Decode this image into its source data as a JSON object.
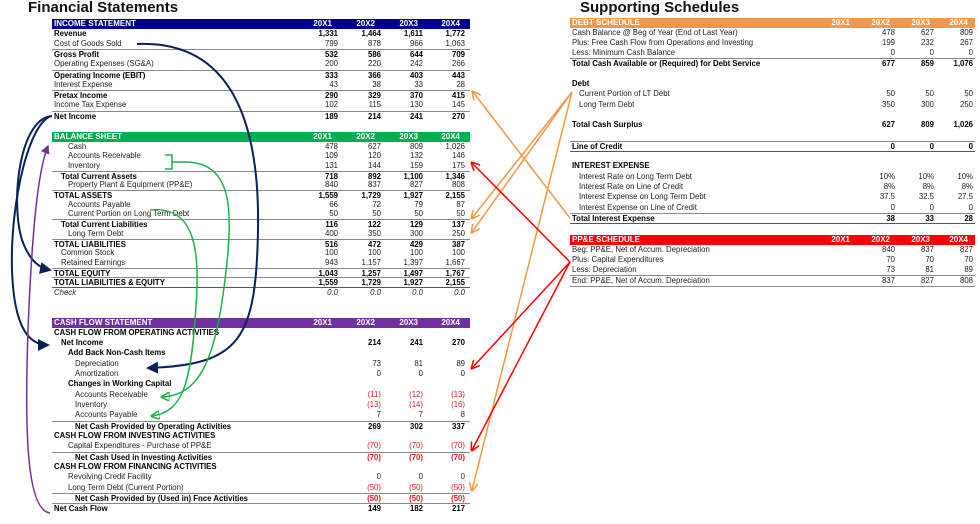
{
  "titles": {
    "left": "Financial Statements",
    "right": "Supporting Schedules"
  },
  "years": [
    "20X1",
    "20X2",
    "20X3",
    "20X4"
  ],
  "colors": {
    "income": "#00008b",
    "balance": "#00b050",
    "cashflow": "#7030a0",
    "debt": "#f79646",
    "ppe": "#ff0000",
    "negative": "#e31b1b"
  },
  "tables": {
    "income": {
      "header": "INCOME STATEMENT",
      "rows": [
        {
          "label": "Revenue",
          "values": [
            "1,331",
            "1,464",
            "1,611",
            "1,772"
          ],
          "bold": true,
          "level": 0
        },
        {
          "label": "Cost of Goods Sold",
          "values": [
            "799",
            "878",
            "966",
            "1,063"
          ],
          "level": 0
        },
        {
          "label": "Gross Profit",
          "values": [
            "532",
            "586",
            "644",
            "709"
          ],
          "bold": true,
          "rule": true,
          "level": 0
        },
        {
          "label": "Operating Expenses (SG&A)",
          "values": [
            "200",
            "220",
            "242",
            "266"
          ],
          "level": 0
        },
        {
          "label": "Operating Income (EBIT)",
          "values": [
            "333",
            "366",
            "403",
            "443"
          ],
          "bold": true,
          "rule": true,
          "level": 0
        },
        {
          "label": "Interest Expense",
          "values": [
            "43",
            "38",
            "33",
            "28"
          ],
          "level": 0
        },
        {
          "label": "Pretax Income",
          "values": [
            "290",
            "329",
            "370",
            "415"
          ],
          "bold": true,
          "rule": true,
          "level": 0
        },
        {
          "label": "Income Tax Expense",
          "values": [
            "102",
            "115",
            "130",
            "145"
          ],
          "level": 0
        },
        {
          "label": "Net Income",
          "values": [
            "189",
            "214",
            "241",
            "270"
          ],
          "bold": true,
          "rule": true,
          "level": 0
        }
      ]
    },
    "balance": {
      "header": "BALANCE SHEET",
      "rows": [
        {
          "label": "Cash",
          "values": [
            "478",
            "627",
            "809",
            "1,026"
          ],
          "level": 2
        },
        {
          "label": "Accounts Receivable",
          "values": [
            "109",
            "120",
            "132",
            "146"
          ],
          "level": 2
        },
        {
          "label": "Inventory",
          "values": [
            "131",
            "144",
            "159",
            "175"
          ],
          "level": 2
        },
        {
          "label": "Total Current Assets",
          "values": [
            "718",
            "892",
            "1,100",
            "1,346"
          ],
          "bold": true,
          "rule": true,
          "level": 1
        },
        {
          "label": "Property Plant & Equipment (PP&E)",
          "values": [
            "840",
            "837",
            "827",
            "808"
          ],
          "level": 2
        },
        {
          "label": "TOTAL ASSETS",
          "values": [
            "1,559",
            "1,729",
            "1,927",
            "2,155"
          ],
          "bold": true,
          "rule": true,
          "level": 0
        },
        {
          "label": "Accounts Payable",
          "values": [
            "66",
            "72",
            "79",
            "87"
          ],
          "level": 2
        },
        {
          "label": "Current Portion on Long Term Debt",
          "values": [
            "50",
            "50",
            "50",
            "50"
          ],
          "level": 2
        },
        {
          "label": "Total Current Liabilities",
          "values": [
            "116",
            "122",
            "129",
            "137"
          ],
          "bold": true,
          "rule": true,
          "level": 1
        },
        {
          "label": "Long Term Debt",
          "values": [
            "400",
            "350",
            "300",
            "250"
          ],
          "level": 2
        },
        {
          "label": "TOTAL LIABILITIES",
          "values": [
            "516",
            "472",
            "429",
            "387"
          ],
          "bold": true,
          "rule": true,
          "level": 0
        },
        {
          "label": "Common Stock",
          "values": [
            "100",
            "100",
            "100",
            "100"
          ],
          "level": 1
        },
        {
          "label": "Retained Earnings",
          "values": [
            "943",
            "1,157",
            "1,397",
            "1,667"
          ],
          "level": 1
        },
        {
          "label": "TOTAL EQUITY",
          "values": [
            "1,043",
            "1,257",
            "1,497",
            "1,767"
          ],
          "bold": true,
          "rule": true,
          "level": 0
        },
        {
          "label": "TOTAL LIABILITIES & EQUITY",
          "values": [
            "1,559",
            "1,729",
            "1,927",
            "2,155"
          ],
          "bold": true,
          "rule": true,
          "level": 0
        },
        {
          "label": "Check",
          "values": [
            "0.0",
            "0.0",
            "0.0",
            "0.0"
          ],
          "italic": true,
          "rule2": true,
          "level": 0
        }
      ]
    },
    "cashflow": {
      "header": "CASH FLOW STATEMENT",
      "rows": [
        {
          "label": "CASH FLOW FROM OPERATING ACTIVITIES",
          "values": [
            "",
            "",
            "",
            ""
          ],
          "bold": true,
          "level": 0
        },
        {
          "label": "Net Income",
          "values": [
            "",
            "214",
            "241",
            "270"
          ],
          "bold": true,
          "level": 1
        },
        {
          "label": "Add Back Non-Cash Items",
          "values": [
            "",
            "",
            "",
            ""
          ],
          "bold": true,
          "level": 2
        },
        {
          "label": "Depreciation",
          "values": [
            "",
            "73",
            "81",
            "89"
          ],
          "level": 3
        },
        {
          "label": "Amortization",
          "values": [
            "",
            "0",
            "0",
            "0"
          ],
          "level": 3
        },
        {
          "label": "Changes in Working Capital",
          "values": [
            "",
            "",
            "",
            ""
          ],
          "bold": true,
          "level": 2
        },
        {
          "label": "Accounts Receivable",
          "values": [
            "",
            "(11)",
            "(12)",
            "(13)"
          ],
          "level": 3
        },
        {
          "label": "Inventory",
          "values": [
            "",
            "(13)",
            "(14)",
            "(16)"
          ],
          "level": 3
        },
        {
          "label": "Accounts Payable",
          "values": [
            "",
            "7",
            "7",
            "8"
          ],
          "level": 3
        },
        {
          "label": "Net Cash Provided by Operating Activities",
          "values": [
            "",
            "269",
            "302",
            "337"
          ],
          "bold": true,
          "rule": true,
          "level": 3
        },
        {
          "label": "CASH FLOW FROM INVESTING ACTIVITIES",
          "values": [
            "",
            "",
            "",
            ""
          ],
          "bold": true,
          "level": 0
        },
        {
          "label": "Capital Expenditures - Purchase of PP&E",
          "values": [
            "",
            "(70)",
            "(70)",
            "(70)"
          ],
          "level": 2
        },
        {
          "label": "Net Cash Used in Investing Activities",
          "values": [
            "",
            "(70)",
            "(70)",
            "(70)"
          ],
          "bold": true,
          "rule": true,
          "level": 3
        },
        {
          "label": "CASH FLOW FROM FINANCING ACTIVITIES",
          "values": [
            "",
            "",
            "",
            ""
          ],
          "bold": true,
          "level": 0
        },
        {
          "label": "Revolving Credit Facility",
          "values": [
            "",
            "0",
            "0",
            "0"
          ],
          "level": 2
        },
        {
          "label": "Long Term Debt (Current Portion)",
          "values": [
            "",
            "(50)",
            "(50)",
            "(50)"
          ],
          "level": 2
        },
        {
          "label": "Net Cash Provided by (Used in) Fnce Activities",
          "values": [
            "",
            "(50)",
            "(50)",
            "(50)"
          ],
          "bold": true,
          "rule": true,
          "level": 3
        },
        {
          "label": "Net Cash Flow",
          "values": [
            "",
            "149",
            "182",
            "217"
          ],
          "bold": true,
          "rule": true,
          "level": 0
        }
      ]
    },
    "debt": {
      "header": "DEBT SCHEDULE",
      "rows": [
        {
          "label": "Cash Balance @ Beg of Year (End of Last Year)",
          "values": [
            "",
            "478",
            "627",
            "809"
          ],
          "level": 0
        },
        {
          "label": "Plus: Free Cash Flow from Operations and Investing",
          "values": [
            "",
            "199",
            "232",
            "267"
          ],
          "level": 0
        },
        {
          "label": "Less: Minimum Cash Balance",
          "values": [
            "",
            "0",
            "0",
            "0"
          ],
          "level": 0
        },
        {
          "label": "Total Cash Available or (Required) for Debt Service",
          "values": [
            "",
            "677",
            "859",
            "1,076"
          ],
          "bold": true,
          "rule": true,
          "level": 0
        },
        {
          "label": "",
          "values": [
            "",
            "",
            "",
            ""
          ],
          "level": 0
        },
        {
          "label": "Debt",
          "values": [
            "",
            "",
            "",
            ""
          ],
          "bold": true,
          "level": 0
        },
        {
          "label": "Current Portion of LT Debt",
          "values": [
            "",
            "50",
            "50",
            "50"
          ],
          "level": 1
        },
        {
          "label": "Long Term Debt",
          "values": [
            "",
            "350",
            "300",
            "250"
          ],
          "level": 1
        },
        {
          "label": "",
          "values": [
            "",
            "",
            "",
            ""
          ],
          "level": 0
        },
        {
          "label": "Total Cash Surplus",
          "values": [
            "",
            "627",
            "809",
            "1,026"
          ],
          "bold": true,
          "level": 0
        },
        {
          "label": "",
          "values": [
            "",
            "",
            "",
            ""
          ],
          "level": 0
        },
        {
          "label": "Line of Credit",
          "values": [
            "",
            "0",
            "0",
            "0"
          ],
          "bold": true,
          "rule": true,
          "level": 0
        },
        {
          "label": "",
          "values": [
            "",
            "",
            "",
            ""
          ],
          "rule2": true,
          "level": 0
        },
        {
          "label": "INTEREST EXPENSE",
          "values": [
            "",
            "",
            "",
            ""
          ],
          "bold": true,
          "level": 0
        },
        {
          "label": "Interest Rate on Long Term Debt",
          "values": [
            "",
            "10%",
            "10%",
            "10%"
          ],
          "level": 1
        },
        {
          "label": "Interest Rate on Line of Credit",
          "values": [
            "",
            "8%",
            "8%",
            "8%"
          ],
          "level": 1
        },
        {
          "label": "Interest Expense on Long Term Debt",
          "values": [
            "",
            "37.5",
            "32.5",
            "27.5"
          ],
          "level": 1
        },
        {
          "label": "Interest Expense on Line of Credit",
          "values": [
            "",
            "0",
            "0",
            "0"
          ],
          "level": 1
        },
        {
          "label": "Total Interest Expense",
          "values": [
            "",
            "38",
            "33",
            "28"
          ],
          "bold": true,
          "rule": true,
          "level": 0
        },
        {
          "label": "",
          "values": [
            "",
            "",
            "",
            ""
          ],
          "rule2": true,
          "level": 0
        }
      ]
    },
    "ppe": {
      "header": "PP&E SCHEDULE",
      "rows": [
        {
          "label": "Beg: PP&E, Net of Accum. Depreciation",
          "values": [
            "",
            "840",
            "837",
            "827"
          ],
          "level": 0
        },
        {
          "label": "Plus: Capital Expenditures",
          "values": [
            "",
            "70",
            "70",
            "70"
          ],
          "level": 0
        },
        {
          "label": "Less: Depreciation",
          "values": [
            "",
            "73",
            "81",
            "89"
          ],
          "level": 0
        },
        {
          "label": "End: PP&E, Net of Accum. Depreciation",
          "values": [
            "",
            "837",
            "827",
            "808"
          ],
          "rule": true,
          "level": 0
        },
        {
          "label": "",
          "values": [
            "",
            "",
            "",
            ""
          ],
          "rule": true,
          "level": 0
        }
      ]
    }
  }
}
